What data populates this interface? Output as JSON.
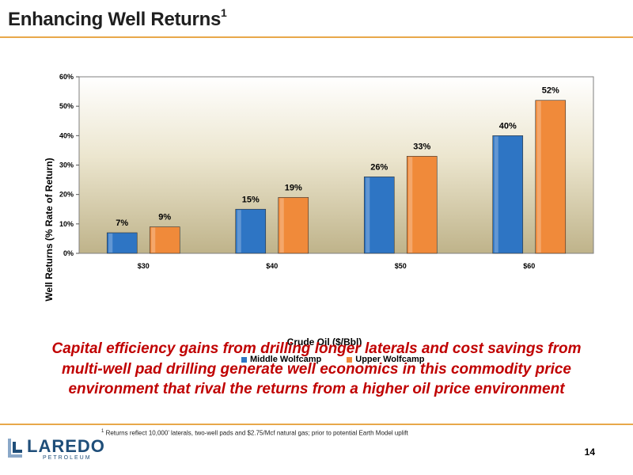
{
  "slide": {
    "title": "Enhancing Well Returns",
    "title_sup": "1",
    "statement": "Capital efficiency gains from drilling longer laterals and cost savings from multi-well pad drilling generate well economics in this commodity price environment that rival the returns from a higher oil price environment",
    "footnote_sup": "1",
    "footnote": "Returns reflect 10,000’ laterals, two-well pads and $2.75/Mcf natural gas; prior to potential Earth Model uplift",
    "page_number": "14",
    "logo_name": "LAREDO",
    "logo_sub": "PETROLEUM"
  },
  "chart_data": {
    "type": "bar",
    "title": "",
    "xlabel": "Crude Oil ($/Bbl)",
    "ylabel": "Well Returns (% Rate of Return)",
    "categories": [
      "$30",
      "$40",
      "$50",
      "$60"
    ],
    "series": [
      {
        "name": "Middle Wolfcamp",
        "values": [
          7,
          15,
          26,
          40
        ],
        "labels": [
          "7%",
          "15%",
          "26%",
          "40%"
        ],
        "color": "#2e75c4"
      },
      {
        "name": "Upper Wolfcamp",
        "values": [
          9,
          19,
          33,
          52
        ],
        "labels": [
          "9%",
          "19%",
          "33%",
          "52%"
        ],
        "color": "#f08a3a"
      }
    ],
    "ylim": [
      0,
      60
    ],
    "yticks": [
      "0%",
      "10%",
      "20%",
      "30%",
      "40%",
      "50%",
      "60%"
    ],
    "grid": false,
    "legend_position": "bottom"
  }
}
